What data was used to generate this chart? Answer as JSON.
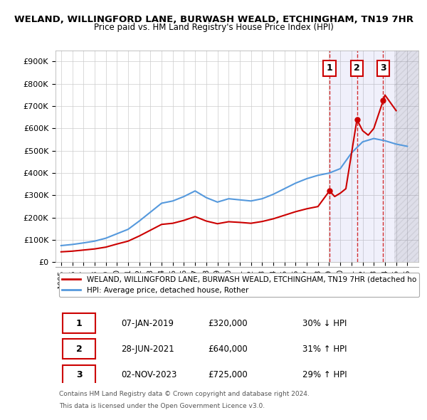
{
  "title": "WELAND, WILLINGFORD LANE, BURWASH WEALD, ETCHINGHAM, TN19 7HR",
  "subtitle": "Price paid vs. HM Land Registry's House Price Index (HPI)",
  "background_color": "#ffffff",
  "plot_bg_color": "#ffffff",
  "grid_color": "#cccccc",
  "transactions": [
    {
      "date_num": 2019.03,
      "price": 320000,
      "label": "1"
    },
    {
      "date_num": 2021.49,
      "price": 640000,
      "label": "2"
    },
    {
      "date_num": 2023.84,
      "price": 725000,
      "label": "3"
    }
  ],
  "transaction_dates_str": [
    "07-JAN-2019",
    "28-JUN-2021",
    "02-NOV-2023"
  ],
  "transaction_prices_str": [
    "£320,000",
    "£640,000",
    "£725,000"
  ],
  "transaction_hpi_str": [
    "30% ↓ HPI",
    "31% ↑ HPI",
    "29% ↑ HPI"
  ],
  "legend_label_red": "WELAND, WILLINGFORD LANE, BURWASH WEALD, ETCHINGHAM, TN19 7HR (detached ho",
  "legend_label_blue": "HPI: Average price, detached house, Rother",
  "footer_line1": "Contains HM Land Registry data © Crown copyright and database right 2024.",
  "footer_line2": "This data is licensed under the Open Government Licence v3.0.",
  "xmin": 1994.5,
  "xmax": 2027.0,
  "ymin": 0,
  "ymax": 950000,
  "hatch_start": 2024.83
}
